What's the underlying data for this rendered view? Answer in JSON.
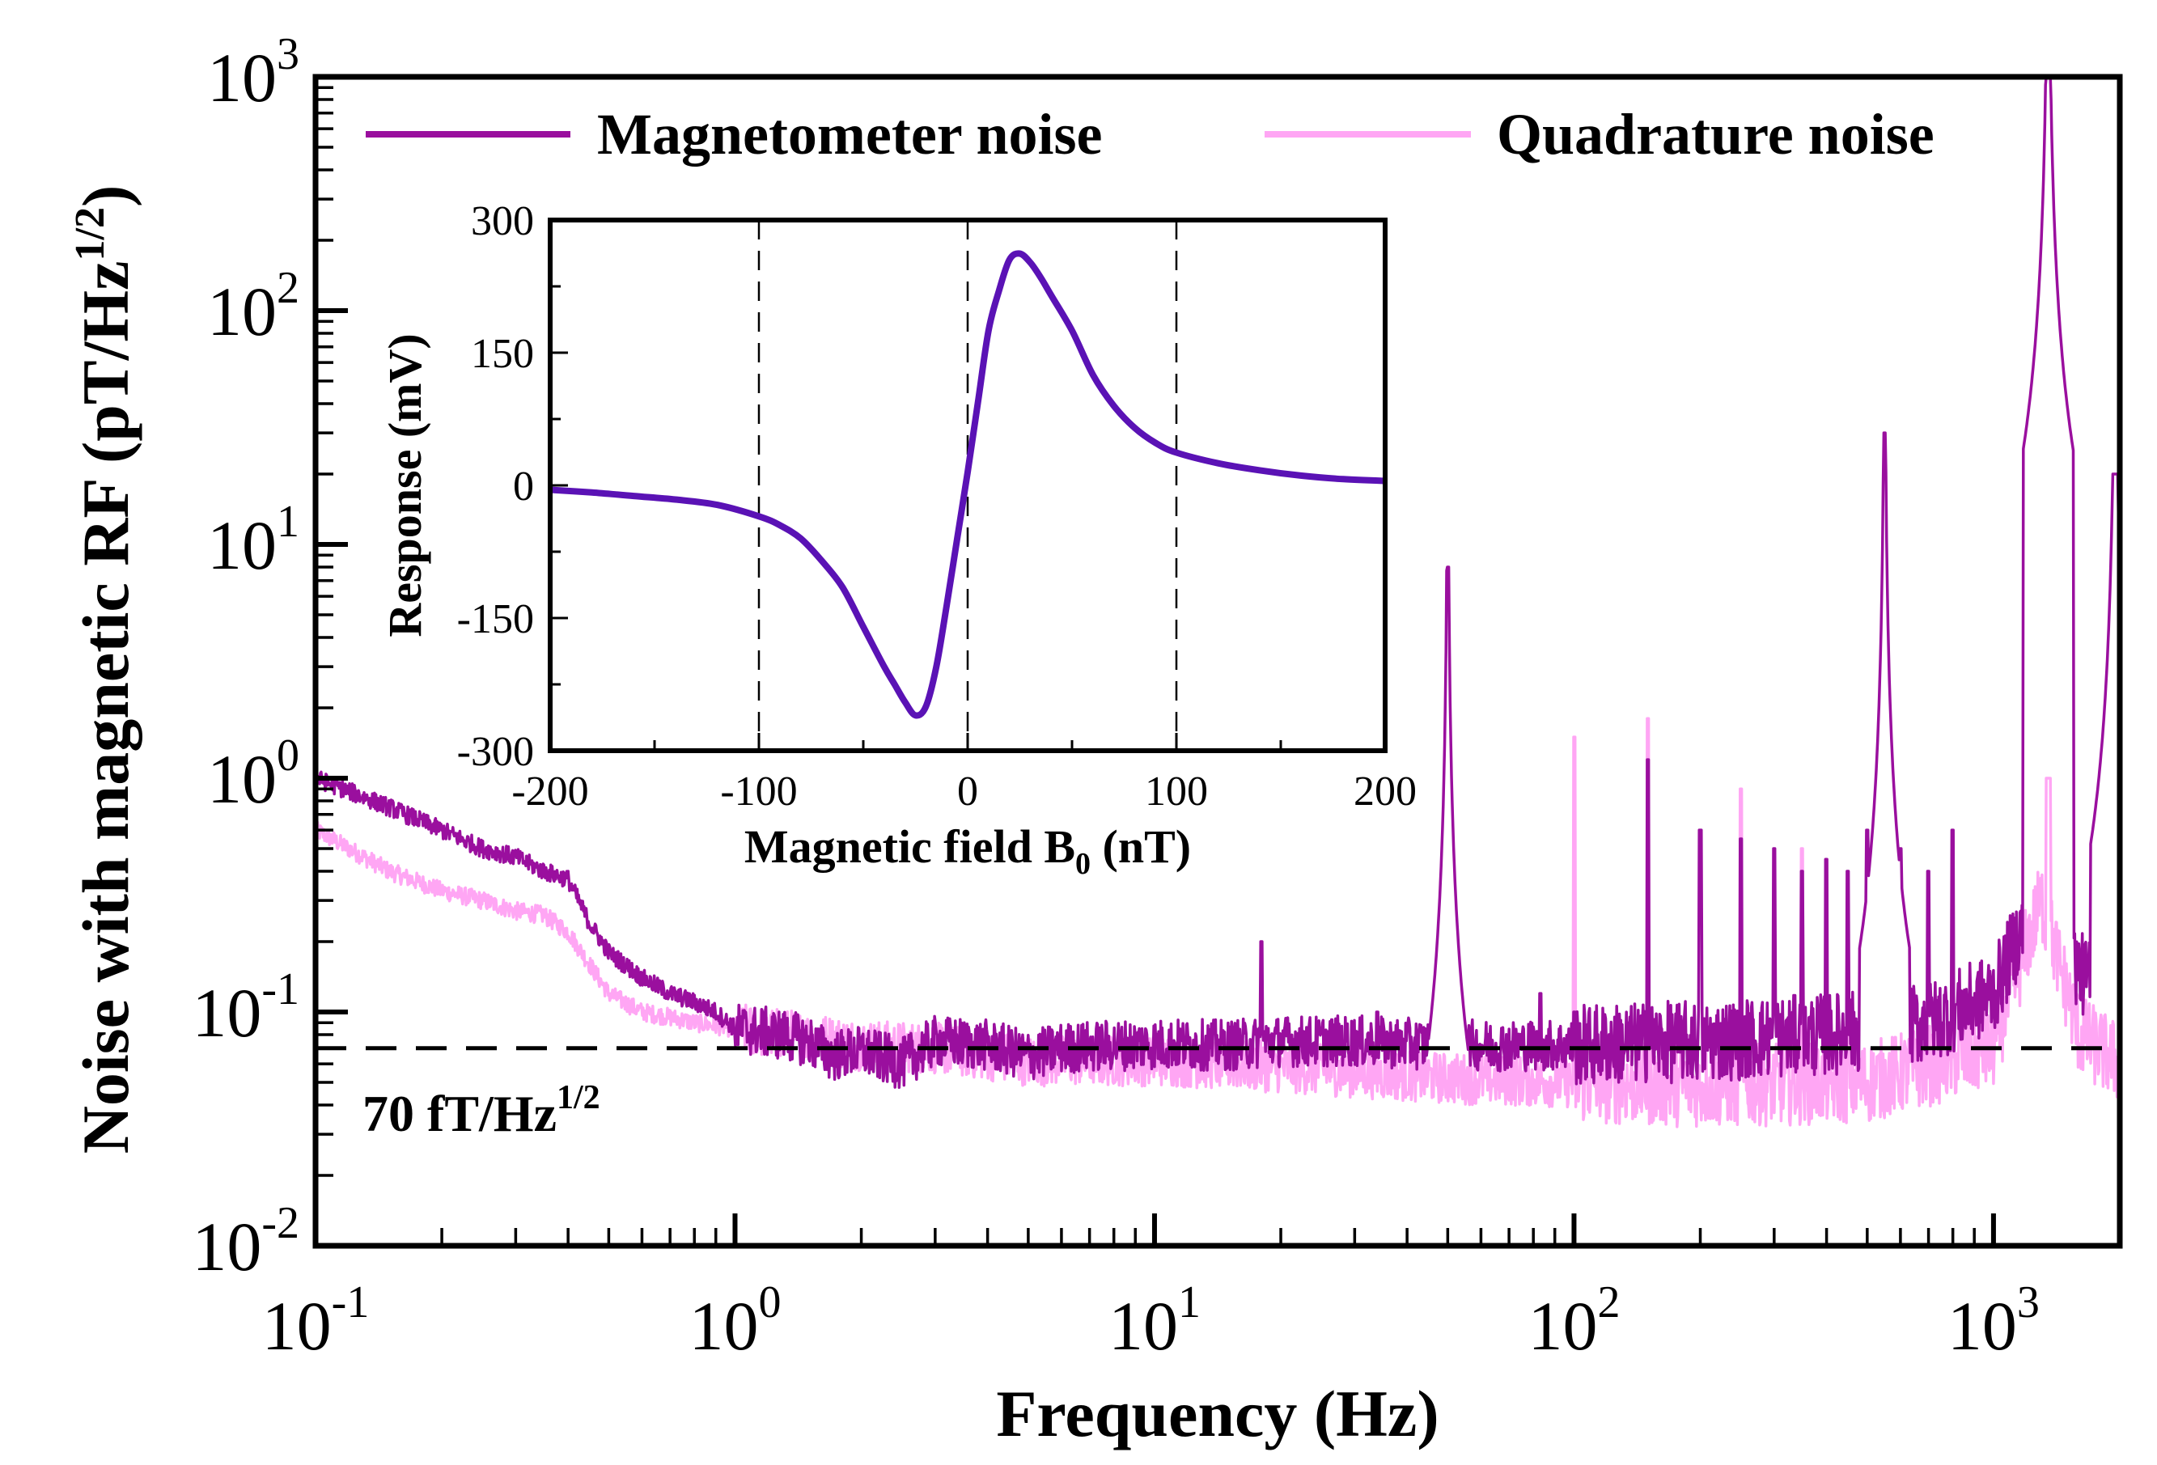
{
  "colors": {
    "magnetometer": "#9a0f9e",
    "quadrature": "#ffa6f4",
    "inset_curve": "#5a12b5",
    "axis": "#000000"
  },
  "chart_data": [
    {
      "type": "line",
      "panel": "main",
      "xlabel": "Frequency (Hz)",
      "ylabel_base": "Noise with magnetic RF (pT/Hz",
      "ylabel_exp": "1/2",
      "ylabel_close": ")",
      "xscale": "log",
      "yscale": "log",
      "xlim": [
        0.1,
        2000
      ],
      "ylim": [
        0.01,
        1000
      ],
      "x_ticks": [
        {
          "base": "10",
          "exp": "-1"
        },
        {
          "base": "10",
          "exp": "0"
        },
        {
          "base": "10",
          "exp": "1"
        },
        {
          "base": "10",
          "exp": "2"
        },
        {
          "base": "10",
          "exp": "3"
        }
      ],
      "y_ticks": [
        {
          "base": "10",
          "exp": "-2"
        },
        {
          "base": "10",
          "exp": "-1"
        },
        {
          "base": "10",
          "exp": "0"
        },
        {
          "base": "10",
          "exp": "1"
        },
        {
          "base": "10",
          "exp": "2"
        },
        {
          "base": "10",
          "exp": "3"
        }
      ],
      "legend_position": "top",
      "series": [
        {
          "name": "Magnetometer noise",
          "color": "#9a0f9e",
          "baseline": [
            [
              0.1,
              1.0
            ],
            [
              0.12,
              0.88
            ],
            [
              0.15,
              0.75
            ],
            [
              0.2,
              0.6
            ],
            [
              0.25,
              0.5
            ],
            [
              0.3,
              0.46
            ],
            [
              0.35,
              0.4
            ],
            [
              0.4,
              0.37
            ],
            [
              0.45,
              0.24
            ],
            [
              0.5,
              0.18
            ],
            [
              0.6,
              0.14
            ],
            [
              0.7,
              0.12
            ],
            [
              0.8,
              0.11
            ],
            [
              0.9,
              0.1
            ],
            [
              1.0,
              0.085
            ],
            [
              1.3,
              0.08
            ],
            [
              1.5,
              0.075
            ],
            [
              1.7,
              0.065
            ],
            [
              2.0,
              0.068
            ],
            [
              2.5,
              0.06
            ],
            [
              3.0,
              0.075
            ],
            [
              4.0,
              0.072
            ],
            [
              5.0,
              0.065
            ],
            [
              6.0,
              0.07
            ],
            [
              8.0,
              0.072
            ],
            [
              10.0,
              0.073
            ],
            [
              15.0,
              0.072
            ],
            [
              20.0,
              0.075
            ],
            [
              30.0,
              0.075
            ],
            [
              50.0,
              0.072
            ],
            [
              100.0,
              0.072
            ],
            [
              200.0,
              0.075
            ],
            [
              400.0,
              0.08
            ],
            [
              700.0,
              0.09
            ],
            [
              1000.0,
              0.12
            ],
            [
              1300.0,
              0.35
            ],
            [
              1600.0,
              0.15
            ],
            [
              2000.0,
              0.1
            ]
          ],
          "peaks": [
            [
              18.0,
              0.2
            ],
            [
              34.0,
              0.1
            ],
            [
              50.0,
              8.0
            ],
            [
              83.0,
              0.12
            ],
            [
              100.0,
              0.1
            ],
            [
              150.0,
              1.2
            ],
            [
              200.0,
              0.6
            ],
            [
              250.0,
              0.55
            ],
            [
              300.0,
              0.5
            ],
            [
              350.0,
              0.4
            ],
            [
              400.0,
              0.45
            ],
            [
              450.0,
              0.4
            ],
            [
              500.0,
              0.6
            ],
            [
              550.0,
              30.0
            ],
            [
              600.0,
              0.5
            ],
            [
              700.0,
              0.4
            ],
            [
              800.0,
              0.6
            ],
            [
              1350.0,
              1000.0
            ],
            [
              1950.0,
              20.0
            ]
          ]
        },
        {
          "name": "Quadrature noise",
          "color": "#ffa6f4",
          "baseline": [
            [
              0.1,
              0.6
            ],
            [
              0.12,
              0.5
            ],
            [
              0.15,
              0.4
            ],
            [
              0.2,
              0.33
            ],
            [
              0.25,
              0.3
            ],
            [
              0.3,
              0.27
            ],
            [
              0.35,
              0.26
            ],
            [
              0.4,
              0.22
            ],
            [
              0.45,
              0.16
            ],
            [
              0.5,
              0.12
            ],
            [
              0.6,
              0.1
            ],
            [
              0.7,
              0.095
            ],
            [
              0.8,
              0.09
            ],
            [
              1.0,
              0.085
            ],
            [
              1.5,
              0.078
            ],
            [
              2.0,
              0.072
            ],
            [
              3.0,
              0.07
            ],
            [
              5.0,
              0.062
            ],
            [
              10.0,
              0.062
            ],
            [
              20.0,
              0.058
            ],
            [
              50.0,
              0.052
            ],
            [
              100.0,
              0.05
            ],
            [
              200.0,
              0.048
            ],
            [
              500.0,
              0.05
            ],
            [
              1000.0,
              0.07
            ],
            [
              1300.0,
              0.3
            ],
            [
              1600.0,
              0.08
            ],
            [
              2000.0,
              0.06
            ]
          ],
          "peaks": [
            [
              100.0,
              1.5
            ],
            [
              150.0,
              1.8
            ],
            [
              250.0,
              0.9
            ],
            [
              350.0,
              0.5
            ],
            [
              450.0,
              0.25
            ],
            [
              1350.0,
              1.0
            ]
          ]
        }
      ],
      "annotations": [
        {
          "label_base": "70 fT/Hz",
          "label_exp": "1/2",
          "y": 0.07,
          "style": "dashed"
        }
      ]
    },
    {
      "type": "line",
      "panel": "inset",
      "xlabel_base": "Magnetic field B",
      "xlabel_sub": "0",
      "xlabel_close": " (nT)",
      "ylabel": "Response (mV)",
      "xlim": [
        -200,
        200
      ],
      "ylim": [
        -300,
        300
      ],
      "x_ticks": [
        "-200",
        "-100",
        "0",
        "100",
        "200"
      ],
      "y_ticks": [
        "-300",
        "-150",
        "0",
        "150",
        "300"
      ],
      "vlines": [
        -100,
        0,
        100
      ],
      "series": [
        {
          "x": [
            -200,
            -180,
            -160,
            -140,
            -120,
            -100,
            -90,
            -80,
            -70,
            -60,
            -50,
            -40,
            -35,
            -30,
            -25,
            -20,
            -15,
            -10,
            -5,
            0,
            5,
            10,
            15,
            20,
            25,
            30,
            35,
            40,
            50,
            60,
            70,
            80,
            90,
            100,
            120,
            140,
            160,
            180,
            200
          ],
          "y": [
            -5,
            -8,
            -12,
            -16,
            -22,
            -35,
            -45,
            -60,
            -85,
            -115,
            -160,
            -205,
            -225,
            -245,
            -260,
            -250,
            -205,
            -135,
            -60,
            15,
            95,
            175,
            220,
            255,
            262,
            252,
            235,
            215,
            175,
            125,
            90,
            65,
            48,
            37,
            25,
            17,
            11,
            7,
            5
          ]
        }
      ]
    }
  ]
}
